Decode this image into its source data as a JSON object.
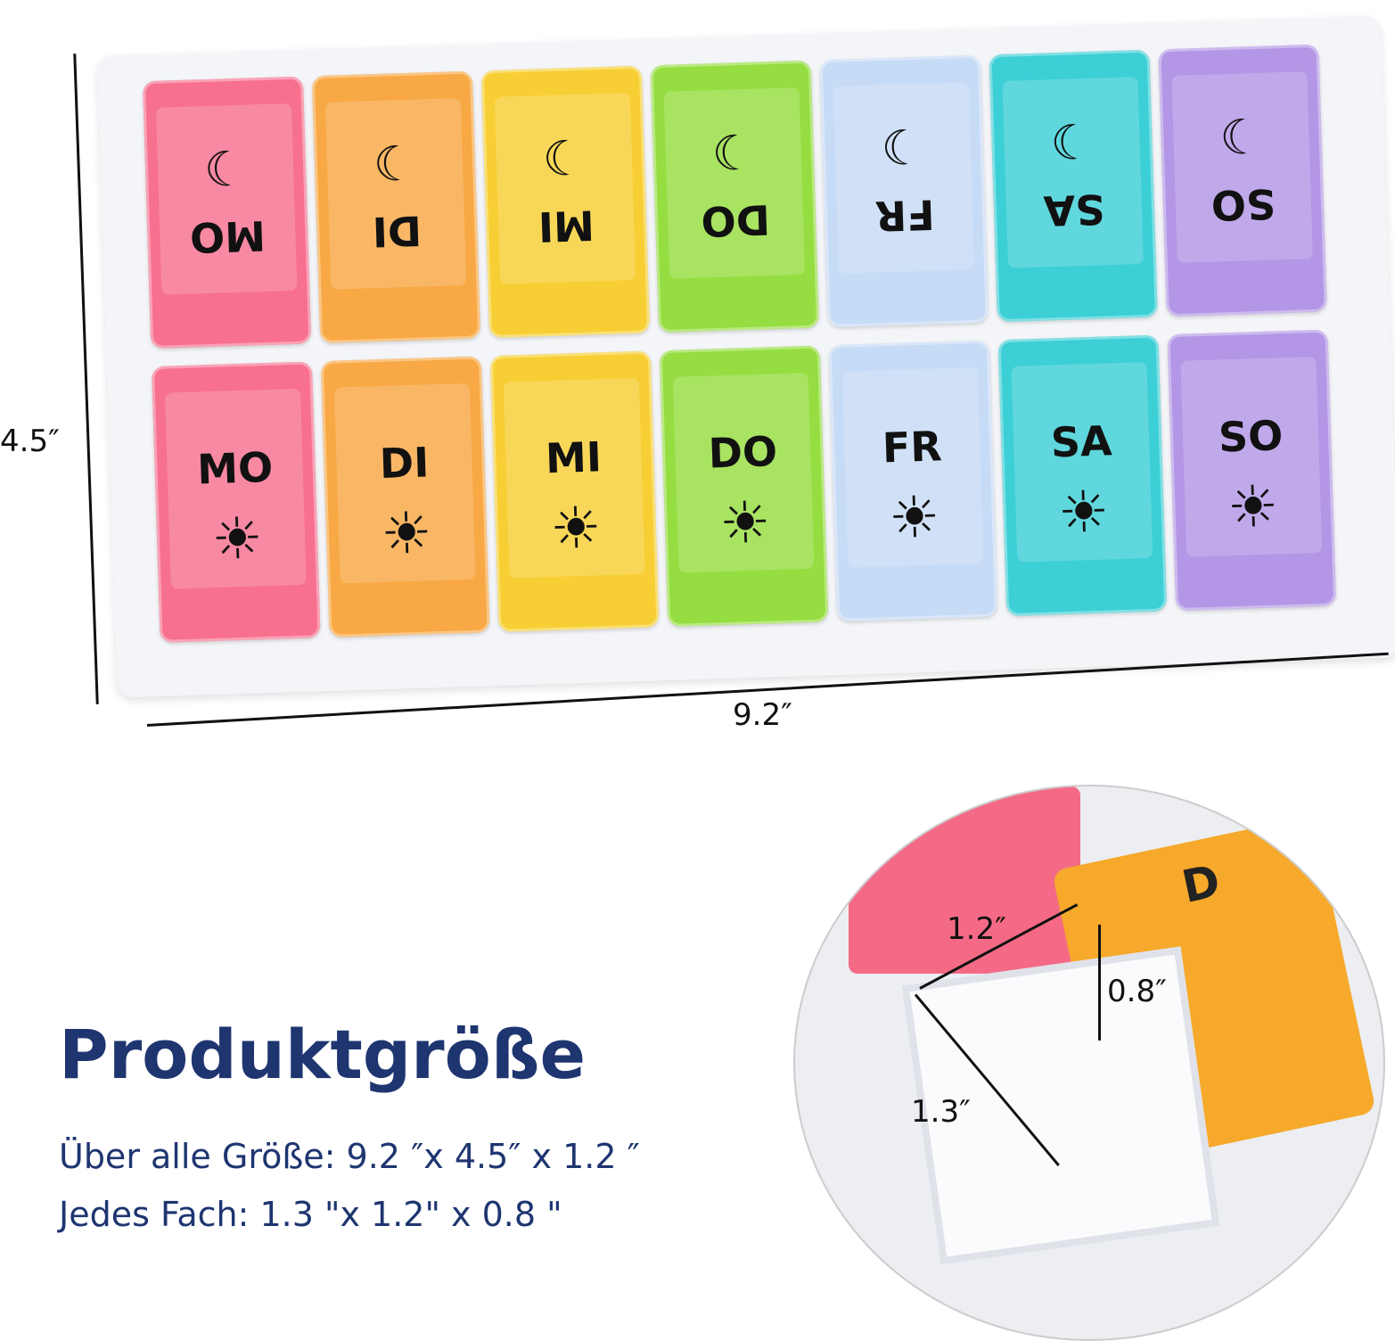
{
  "days": [
    "MO",
    "DI",
    "MI",
    "DO",
    "FR",
    "SA",
    "SO"
  ],
  "colors": [
    "#f7708f",
    "#f8a844",
    "#f7cf34",
    "#95dd40",
    "#c6dbf6",
    "#3ccfd6",
    "#b396e6"
  ],
  "icons": {
    "top": "moon-icon",
    "bottom": "sun-icon"
  },
  "dimensions": {
    "height": "4.5″",
    "width": "9.2″",
    "compartment_width": "1.2″",
    "compartment_depth": "0.8″",
    "compartment_length": "1.3″"
  },
  "title": "Produktgröße",
  "specs": [
    "Über alle Größe: 9.2 ″x 4.5″ x 1.2 ″",
    "Jedes Fach: 1.3 \"x 1.2\" x 0.8 \""
  ],
  "inset": {
    "lid_letter": "D"
  }
}
